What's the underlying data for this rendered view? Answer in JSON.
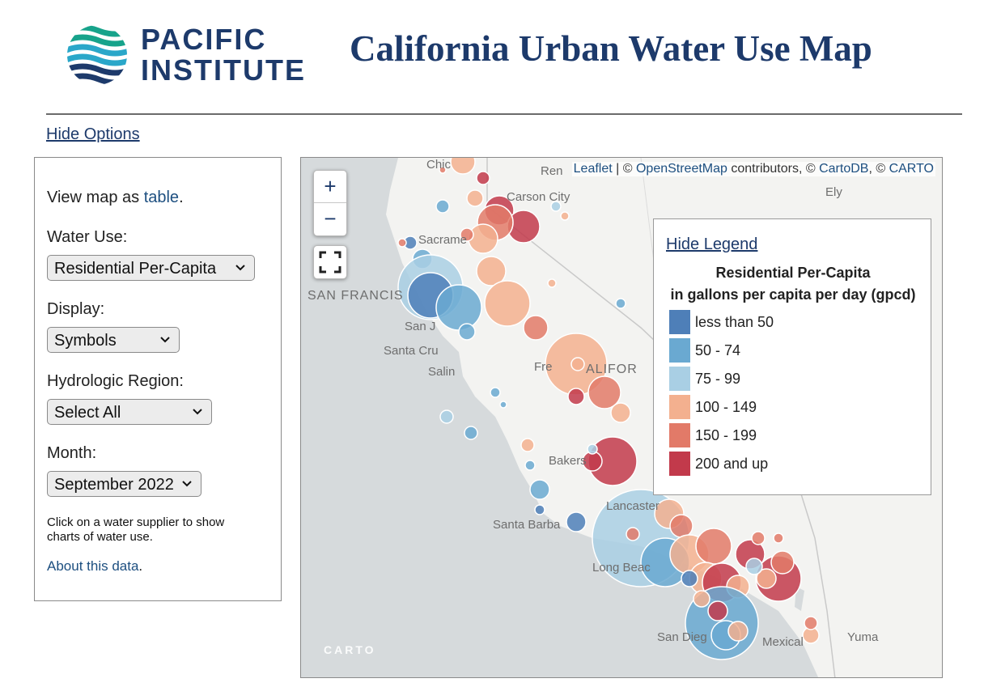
{
  "logo": {
    "line1": "PACIFIC",
    "line2": "INSTITUTE"
  },
  "title": "California Urban Water Use Map",
  "options_toggle": "Hide Options",
  "options": {
    "view_prefix": "View map as ",
    "view_link": "table",
    "view_suffix": ".",
    "water_use_label": "Water Use:",
    "water_use_value": "Residential Per-Capita",
    "display_label": "Display:",
    "display_value": "Symbols",
    "region_label": "Hydrologic Region:",
    "region_value": "Select All",
    "month_label": "Month:",
    "month_value": "September 2022",
    "help_text": "Click on a water supplier to show charts of water use.",
    "about_link": "About this data",
    "about_suffix": "."
  },
  "map": {
    "attribution": {
      "leaflet": "Leaflet",
      "sep": " | © ",
      "osm": "OpenStreetMap",
      "contrib": " contributors, © ",
      "cartodb": "CartoDB",
      "comma": ", © ",
      "carto": "CARTO"
    },
    "zoom_in": "+",
    "zoom_out": "−",
    "carto_logo": "CARTO",
    "places": {
      "carson_city": "Carson City",
      "ely": "Ely",
      "sacramento": "Sacrame",
      "san_francisco": "SAN FRANCIS",
      "san_jose": "San J",
      "santa_cruz": "Santa Cru",
      "salinas": "Salin",
      "fresno": "Fre",
      "california": "ALIFOR",
      "bakersfield": "Bakers",
      "lancaster": "Lancaster",
      "santa_barbara": "Santa Barba",
      "long_beach": "Long Beac",
      "san_diego": "San Dieg",
      "mexicali": "Mexical",
      "yuma": "Yuma",
      "reno": "Ren",
      "chico": "Chic"
    },
    "legend": {
      "toggle": "Hide Legend",
      "title": "Residential Per-Capita",
      "subtitle": "in gallons per capita per day (gpcd)",
      "items": [
        {
          "label": "less than 50",
          "color": "#4e7fb8"
        },
        {
          "label": "50 - 74",
          "color": "#6aa9d1"
        },
        {
          "label": "75 - 99",
          "color": "#a9cfe4"
        },
        {
          "label": "100 - 149",
          "color": "#f3b08f"
        },
        {
          "label": "150 - 199",
          "color": "#e27a68"
        },
        {
          "label": "200 and up",
          "color": "#c23a4b"
        }
      ]
    }
  }
}
